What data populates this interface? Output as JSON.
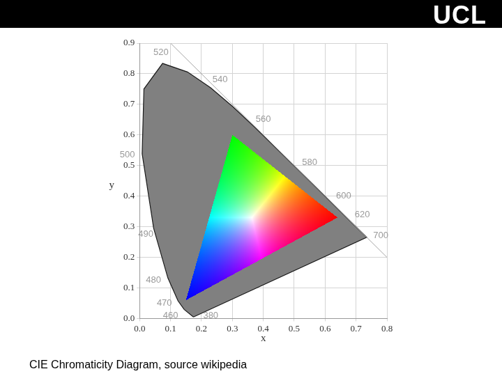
{
  "header": {
    "logo": "UCL"
  },
  "chart_data": {
    "type": "scatter",
    "xlabel": "x",
    "ylabel": "y",
    "xlim": [
      0,
      0.8
    ],
    "xticks": [
      {
        "value": 0,
        "label": "0.0"
      },
      0.1,
      0.2,
      0.3,
      0.4,
      0.5,
      0.6,
      0.7,
      0.8
    ],
    "ylim": [
      0,
      0.9
    ],
    "yticks": [
      {
        "value": 0,
        "label": "0.0"
      },
      0.1,
      0.2,
      0.3,
      0.4,
      0.5,
      0.6,
      0.7,
      0.8,
      0.9
    ],
    "grid": true,
    "series": [
      {
        "type": "area",
        "color": "#808080",
        "x": [
          0.1741,
          0.144,
          0.1241,
          0.0913,
          0.0454,
          0.0082,
          0.0139,
          0.0743,
          0.1547,
          0.2296,
          0.3016,
          0.3731,
          0.4441,
          0.5125,
          0.5752,
          0.627,
          0.6915,
          0.7347,
          0.1741
        ],
        "values": [
          0.005,
          0.0297,
          0.0578,
          0.1327,
          0.295,
          0.5384,
          0.7502,
          0.8338,
          0.8059,
          0.7543,
          0.6923,
          0.6245,
          0.5547,
          0.4866,
          0.4242,
          0.3725,
          0.3083,
          0.2653,
          0.005
        ]
      },
      {
        "type": "area",
        "colors": [
          "#ff0000",
          "#00ff00",
          "#0000ff"
        ],
        "x": [
          0.64,
          0.3,
          0.15
        ],
        "values": [
          0.33,
          0.6,
          0.06
        ]
      },
      {
        "type": "line",
        "color": "#a6a6a6",
        "x": [
          0.1,
          0.8
        ],
        "values": [
          0.9,
          0.2
        ]
      }
    ],
    "annotations": [
      {
        "text": "520",
        "x": 0.069,
        "y": 0.87
      },
      {
        "text": "540",
        "x": 0.26,
        "y": 0.78
      },
      {
        "text": "560",
        "x": 0.4,
        "y": 0.65
      },
      {
        "text": "580",
        "x": 0.55,
        "y": 0.51
      },
      {
        "text": "600",
        "x": 0.66,
        "y": 0.4
      },
      {
        "text": "620",
        "x": 0.72,
        "y": 0.34
      },
      {
        "text": "700",
        "x": 0.78,
        "y": 0.27
      },
      {
        "text": "500",
        "x": -0.04,
        "y": 0.535
      },
      {
        "text": "490",
        "x": 0.02,
        "y": 0.275
      },
      {
        "text": "480",
        "x": 0.045,
        "y": 0.125
      },
      {
        "text": "470",
        "x": 0.08,
        "y": 0.05
      },
      {
        "text": "460",
        "x": 0.1,
        "y": 0.01
      },
      {
        "text": "380",
        "x": 0.23,
        "y": 0.01
      }
    ]
  },
  "caption": "CIE Chromaticity Diagram, source wikipedia"
}
